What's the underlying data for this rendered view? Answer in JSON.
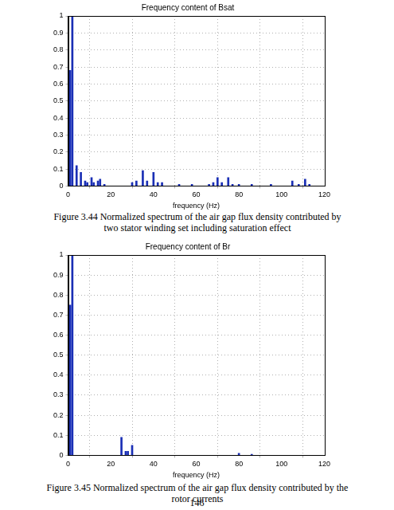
{
  "chart_data": [
    {
      "type": "bar",
      "title": "Frequency content of Bsat",
      "xlabel": "frequency (Hz)",
      "x": [
        1,
        2,
        4,
        6,
        8,
        9,
        11,
        12,
        14,
        15,
        17,
        30,
        32,
        35,
        37,
        40,
        42,
        44,
        52,
        58,
        66,
        68,
        70,
        72,
        75,
        77,
        80,
        86,
        95,
        105,
        108,
        111,
        113
      ],
      "values": [
        0.68,
        1.0,
        0.12,
        0.08,
        0.03,
        0.02,
        0.05,
        0.02,
        0.03,
        0.04,
        0.01,
        0.02,
        0.03,
        0.09,
        0.03,
        0.08,
        0.02,
        0.02,
        0.01,
        0.01,
        0.01,
        0.02,
        0.05,
        0.02,
        0.05,
        0.01,
        0.01,
        0.01,
        0.01,
        0.03,
        0.01,
        0.04,
        0.01
      ],
      "color": "#1a2fb5",
      "xlim": [
        0,
        120
      ],
      "xticks": [
        0,
        20,
        40,
        60,
        80,
        100,
        120
      ],
      "ylim": [
        0,
        1
      ],
      "yticks": [
        0,
        0.1,
        0.2,
        0.3,
        0.4,
        0.5,
        0.6,
        0.7,
        0.8,
        0.9,
        1
      ],
      "grid": true
    },
    {
      "type": "bar",
      "title": "Frequency content of Br",
      "xlabel": "frequency (Hz)",
      "x": [
        1,
        2,
        25,
        27,
        28,
        30,
        80,
        86
      ],
      "values": [
        0.75,
        1.0,
        0.09,
        0.02,
        0.02,
        0.05,
        0.01,
        0.005
      ],
      "color": "#1a2fb5",
      "xlim": [
        0,
        120
      ],
      "xticks": [
        0,
        20,
        40,
        60,
        80,
        100,
        120
      ],
      "ylim": [
        0,
        1
      ],
      "yticks": [
        0,
        0.1,
        0.2,
        0.3,
        0.4,
        0.5,
        0.6,
        0.7,
        0.8,
        0.9,
        1
      ],
      "grid": true
    }
  ],
  "captions": [
    "Figure 3.44 Normalized spectrum of the air gap flux density contributed by two stator winding set including saturation effect",
    "Figure 3.45 Normalized spectrum of the air gap flux density contributed by the rotor currents"
  ],
  "page_number": "146"
}
